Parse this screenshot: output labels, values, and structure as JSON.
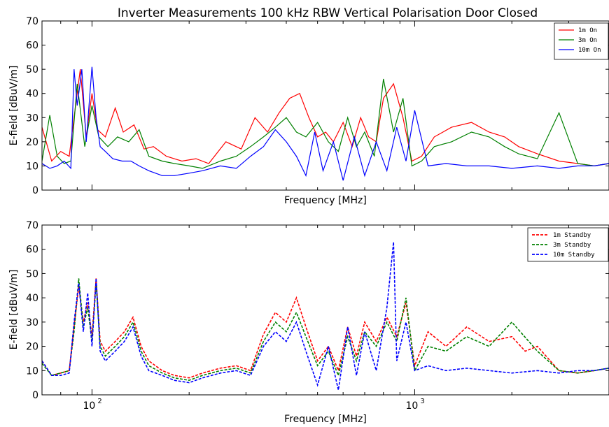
{
  "title": "Inverter Measurements 100 kHz RBW Vertical Polarisation Door Closed",
  "colors": {
    "red": "#ff0000",
    "green": "#008000",
    "blue": "#0000ff",
    "axes": "#000000",
    "bg": "#ffffff"
  },
  "chart_data": [
    {
      "type": "line",
      "xlabel": "Frequency [MHz]",
      "ylabel": "E-field [dBuV/m]",
      "xscale": "log",
      "xlim": [
        70,
        4000
      ],
      "ylim": [
        0,
        70
      ],
      "yticks": [
        0,
        10,
        20,
        30,
        40,
        50,
        60,
        70
      ],
      "xticks": [
        {
          "value": 100,
          "base": "10",
          "exp": "2"
        },
        {
          "value": 1000,
          "base": "10",
          "exp": "3"
        }
      ],
      "grid": false,
      "legend_position": "upper right",
      "series": [
        {
          "name": "1m On",
          "color": "#ff0000",
          "style": "solid",
          "x": [
            70,
            75,
            80,
            85,
            88,
            92,
            96,
            100,
            104,
            110,
            118,
            125,
            135,
            145,
            155,
            170,
            190,
            210,
            230,
            260,
            290,
            320,
            350,
            380,
            410,
            440,
            470,
            500,
            530,
            560,
            600,
            640,
            680,
            720,
            760,
            800,
            860,
            920,
            980,
            1050,
            1150,
            1300,
            1500,
            1700,
            1900,
            2100,
            2400,
            2800,
            3200,
            3600,
            4000
          ],
          "y": [
            26,
            12,
            16,
            14,
            30,
            50,
            22,
            40,
            25,
            22,
            34,
            24,
            27,
            17,
            18,
            14,
            12,
            13,
            11,
            20,
            17,
            30,
            24,
            32,
            38,
            40,
            30,
            22,
            24,
            20,
            28,
            18,
            30,
            22,
            20,
            38,
            44,
            30,
            12,
            14,
            22,
            26,
            28,
            24,
            22,
            18,
            15,
            12,
            11,
            10,
            11
          ]
        },
        {
          "name": "3m On",
          "color": "#008000",
          "style": "solid",
          "x": [
            70,
            74,
            78,
            82,
            86,
            90,
            95,
            100,
            105,
            112,
            120,
            130,
            140,
            150,
            165,
            180,
            200,
            220,
            250,
            280,
            310,
            340,
            370,
            400,
            430,
            460,
            500,
            540,
            580,
            620,
            660,
            700,
            750,
            800,
            860,
            920,
            980,
            1050,
            1150,
            1300,
            1500,
            1700,
            1900,
            2100,
            2400,
            2800,
            3200,
            3600,
            4000
          ],
          "y": [
            12,
            31,
            14,
            11,
            12,
            44,
            18,
            35,
            22,
            18,
            22,
            20,
            25,
            14,
            12,
            11,
            10,
            9,
            12,
            14,
            18,
            22,
            26,
            30,
            24,
            22,
            28,
            20,
            16,
            30,
            18,
            24,
            14,
            46,
            24,
            38,
            10,
            12,
            18,
            20,
            24,
            22,
            18,
            15,
            13,
            32,
            11,
            10,
            11
          ]
        },
        {
          "name": "10m On",
          "color": "#0000ff",
          "style": "solid",
          "x": [
            70,
            74,
            78,
            82,
            86,
            88,
            90,
            93,
            96,
            100,
            103,
            106,
            110,
            116,
            124,
            132,
            140,
            150,
            165,
            180,
            200,
            220,
            250,
            280,
            310,
            340,
            370,
            400,
            430,
            460,
            490,
            520,
            560,
            600,
            650,
            700,
            760,
            820,
            880,
            940,
            1000,
            1100,
            1250,
            1450,
            1700,
            2000,
            2400,
            2800,
            3200,
            3600,
            4000
          ],
          "y": [
            11,
            9,
            10,
            12,
            9,
            50,
            35,
            50,
            20,
            51,
            30,
            18,
            16,
            13,
            12,
            12,
            10,
            8,
            6,
            6,
            7,
            8,
            10,
            9,
            14,
            18,
            25,
            20,
            14,
            6,
            24,
            8,
            20,
            4,
            22,
            6,
            20,
            8,
            26,
            12,
            33,
            10,
            11,
            10,
            10,
            9,
            10,
            9,
            10,
            10,
            11
          ]
        }
      ]
    },
    {
      "type": "line",
      "xlabel": "Frequency [MHz]",
      "ylabel": "E-field [dBuV/m]",
      "xscale": "log",
      "xlim": [
        70,
        4000
      ],
      "ylim": [
        0,
        70
      ],
      "yticks": [
        0,
        10,
        20,
        30,
        40,
        50,
        60,
        70
      ],
      "xticks": [
        {
          "value": 100,
          "base": "10",
          "exp": "2"
        },
        {
          "value": 1000,
          "base": "10",
          "exp": "3"
        }
      ],
      "grid": false,
      "legend_position": "upper right",
      "series": [
        {
          "name": "1m Standby",
          "color": "#ff0000",
          "style": "dashed",
          "x": [
            70,
            75,
            80,
            85,
            88,
            91,
            94,
            97,
            100,
            103,
            106,
            110,
            118,
            126,
            134,
            142,
            150,
            165,
            180,
            200,
            220,
            250,
            280,
            310,
            340,
            370,
            400,
            430,
            460,
            500,
            540,
            580,
            620,
            660,
            700,
            760,
            820,
            880,
            940,
            1000,
            1100,
            1250,
            1450,
            1700,
            2000,
            2200,
            2400,
            2800,
            3200,
            3600,
            4000
          ],
          "y": [
            14,
            8,
            9,
            10,
            28,
            45,
            30,
            38,
            24,
            48,
            22,
            18,
            22,
            26,
            32,
            20,
            14,
            10,
            8,
            7,
            9,
            11,
            12,
            10,
            25,
            34,
            30,
            40,
            28,
            14,
            20,
            10,
            28,
            16,
            30,
            22,
            32,
            24,
            38,
            12,
            26,
            20,
            28,
            22,
            24,
            18,
            20,
            10,
            9,
            10,
            11
          ]
        },
        {
          "name": "3m Standby",
          "color": "#008000",
          "style": "dashed",
          "x": [
            70,
            75,
            80,
            85,
            88,
            91,
            94,
            97,
            100,
            103,
            106,
            110,
            118,
            126,
            134,
            142,
            150,
            165,
            180,
            200,
            220,
            250,
            280,
            310,
            340,
            370,
            400,
            430,
            460,
            500,
            540,
            580,
            620,
            660,
            700,
            760,
            820,
            880,
            940,
            1000,
            1100,
            1250,
            1450,
            1700,
            2000,
            2400,
            2800,
            3200,
            3600,
            4000
          ],
          "y": [
            13,
            8,
            9,
            10,
            26,
            48,
            28,
            36,
            22,
            46,
            20,
            16,
            20,
            24,
            30,
            18,
            12,
            9,
            7,
            6,
            8,
            10,
            11,
            9,
            22,
            30,
            26,
            34,
            24,
            12,
            18,
            8,
            24,
            14,
            26,
            20,
            30,
            22,
            40,
            10,
            20,
            18,
            24,
            20,
            30,
            18,
            10,
            9,
            10,
            11
          ]
        },
        {
          "name": "10m Standby",
          "color": "#0000ff",
          "style": "dashed",
          "x": [
            70,
            75,
            80,
            85,
            88,
            91,
            94,
            97,
            100,
            103,
            106,
            110,
            118,
            126,
            134,
            142,
            150,
            165,
            180,
            200,
            220,
            250,
            280,
            310,
            340,
            370,
            400,
            430,
            460,
            500,
            540,
            580,
            620,
            660,
            700,
            760,
            820,
            860,
            880,
            940,
            1000,
            1100,
            1250,
            1450,
            1700,
            2000,
            2400,
            2800,
            3200,
            3600,
            4000
          ],
          "y": [
            14,
            8,
            8,
            9,
            30,
            46,
            26,
            42,
            20,
            48,
            18,
            14,
            18,
            22,
            28,
            16,
            10,
            8,
            6,
            5,
            7,
            9,
            10,
            8,
            20,
            26,
            22,
            30,
            18,
            4,
            20,
            2,
            28,
            8,
            26,
            10,
            36,
            63,
            14,
            30,
            10,
            12,
            10,
            11,
            10,
            9,
            10,
            9,
            10,
            10,
            11
          ]
        }
      ]
    }
  ]
}
